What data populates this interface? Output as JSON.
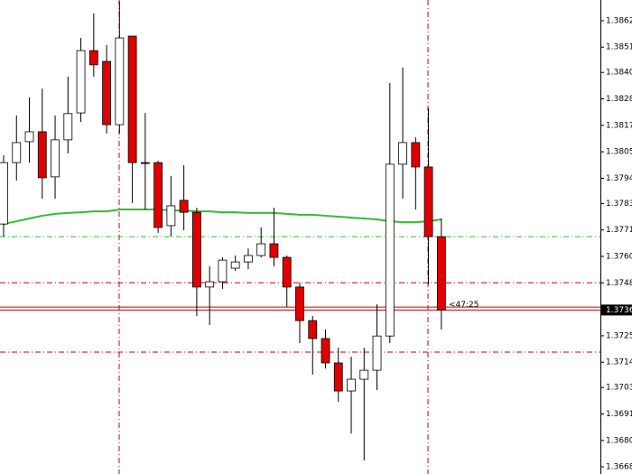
{
  "chart_data": {
    "type": "candlestick",
    "candles": [
      {
        "open": 1.37741,
        "high": 1.3804,
        "low": 1.37686,
        "close": 1.38008
      },
      {
        "open": 1.38008,
        "high": 1.38213,
        "low": 1.3793,
        "close": 1.38095
      },
      {
        "open": 1.38099,
        "high": 1.38291,
        "low": 1.38008,
        "close": 1.38142
      },
      {
        "open": 1.38142,
        "high": 1.3833,
        "low": 1.37851,
        "close": 1.37942
      },
      {
        "open": 1.37946,
        "high": 1.38213,
        "low": 1.37851,
        "close": 1.38107
      },
      {
        "open": 1.38107,
        "high": 1.38382,
        "low": 1.38048,
        "close": 1.38221
      },
      {
        "open": 1.38224,
        "high": 1.3855,
        "low": 1.38185,
        "close": 1.38495
      },
      {
        "open": 1.38495,
        "high": 1.38656,
        "low": 1.38382,
        "close": 1.38433
      },
      {
        "open": 1.38448,
        "high": 1.38519,
        "low": 1.38134,
        "close": 1.38173
      },
      {
        "open": 1.38173,
        "high": 1.3871,
        "low": 1.38134,
        "close": 1.3855
      },
      {
        "open": 1.38558,
        "high": 1.38558,
        "low": 1.37832,
        "close": 1.38008
      },
      {
        "open": 1.38008,
        "high": 1.38224,
        "low": 1.37804,
        "close": 1.38005
      },
      {
        "open": 1.38008,
        "high": 1.38016,
        "low": 1.37702,
        "close": 1.37726
      },
      {
        "open": 1.37734,
        "high": 1.3795,
        "low": 1.37686,
        "close": 1.3782
      },
      {
        "open": 1.37844,
        "high": 1.37997,
        "low": 1.37714,
        "close": 1.37792
      },
      {
        "open": 1.37792,
        "high": 1.37812,
        "low": 1.37341,
        "close": 1.37467
      },
      {
        "open": 1.37467,
        "high": 1.37557,
        "low": 1.37302,
        "close": 1.3749
      },
      {
        "open": 1.3749,
        "high": 1.37596,
        "low": 1.37459,
        "close": 1.37584
      },
      {
        "open": 1.37549,
        "high": 1.37604,
        "low": 1.37537,
        "close": 1.37576
      },
      {
        "open": 1.37576,
        "high": 1.37635,
        "low": 1.37545,
        "close": 1.37604
      },
      {
        "open": 1.37604,
        "high": 1.37726,
        "low": 1.37596,
        "close": 1.37655
      },
      {
        "open": 1.37655,
        "high": 1.37812,
        "low": 1.37557,
        "close": 1.37596
      },
      {
        "open": 1.37596,
        "high": 1.37604,
        "low": 1.3738,
        "close": 1.37467
      },
      {
        "open": 1.37467,
        "high": 1.37486,
        "low": 1.37223,
        "close": 1.37321
      },
      {
        "open": 1.37321,
        "high": 1.37341,
        "low": 1.37086,
        "close": 1.37243
      },
      {
        "open": 1.37243,
        "high": 1.37282,
        "low": 1.37113,
        "close": 1.37137
      },
      {
        "open": 1.37137,
        "high": 1.37203,
        "low": 1.36968,
        "close": 1.37015
      },
      {
        "open": 1.37015,
        "high": 1.37164,
        "low": 1.3683,
        "close": 1.37066
      },
      {
        "open": 1.37066,
        "high": 1.37203,
        "low": 1.36713,
        "close": 1.37105
      },
      {
        "open": 1.37105,
        "high": 1.37392,
        "low": 1.37019,
        "close": 1.37254
      },
      {
        "open": 1.37254,
        "high": 1.38354,
        "low": 1.37223,
        "close": 1.38001
      },
      {
        "open": 1.38001,
        "high": 1.38421,
        "low": 1.37851,
        "close": 1.38095
      },
      {
        "open": 1.38095,
        "high": 1.38118,
        "low": 1.37804,
        "close": 1.37989
      },
      {
        "open": 1.37989,
        "high": 1.38244,
        "low": 1.37478,
        "close": 1.37686
      },
      {
        "open": 1.37686,
        "high": 1.37765,
        "low": 1.37282,
        "close": 1.37367
      }
    ],
    "up_color": "#ffffff",
    "down_color": "#e00000",
    "wick_color": "#000000",
    "moving_average": {
      "color": "#33bb33",
      "values": [
        1.37741,
        1.37753,
        1.37765,
        1.37777,
        1.37785,
        1.37789,
        1.37792,
        1.37796,
        1.37796,
        1.37804,
        1.37804,
        1.37804,
        1.37804,
        1.378,
        1.378,
        1.37796,
        1.37796,
        1.37792,
        1.37792,
        1.37789,
        1.37789,
        1.37789,
        1.37785,
        1.37781,
        1.37781,
        1.37777,
        1.37773,
        1.37769,
        1.37765,
        1.37761,
        1.37753,
        1.37749,
        1.37749,
        1.37753,
        1.37761
      ]
    },
    "hlines": [
      {
        "value": 1.37686,
        "color": "#33bb33",
        "style": "dashdot"
      },
      {
        "value": 1.37486,
        "color": "#cc0000",
        "style": "dashdot"
      },
      {
        "value": 1.37184,
        "color": "#cc0000",
        "style": "dashdot"
      },
      {
        "value": 1.3738,
        "color": "#cc0000",
        "style": "solid"
      },
      {
        "value": 1.37367,
        "color": "#cc0000",
        "style": "solid"
      }
    ],
    "current_price": 1.37367,
    "countdown": "<47:25",
    "ylim": [
      1.36654,
      1.38715
    ],
    "yticks": [
      1.38625,
      {
        "value": 1.3851,
        "label": "1.38510"
      },
      {
        "value": 1.384,
        "label": "1.38400"
      },
      1.38285,
      {
        "value": 1.3817,
        "label": "1.38170"
      },
      1.38055,
      {
        "value": 1.3794,
        "label": "1.37940"
      },
      {
        "value": 1.3783,
        "label": "1.37830"
      },
      1.37715,
      {
        "value": 1.376,
        "label": "1.37600"
      },
      1.37485,
      1.37255,
      {
        "value": 1.3714,
        "label": "1.37140"
      },
      {
        "value": 1.3703,
        "label": "1.37030"
      },
      1.36915,
      {
        "value": 1.368,
        "label": "1.36800"
      },
      1.36685
    ]
  }
}
